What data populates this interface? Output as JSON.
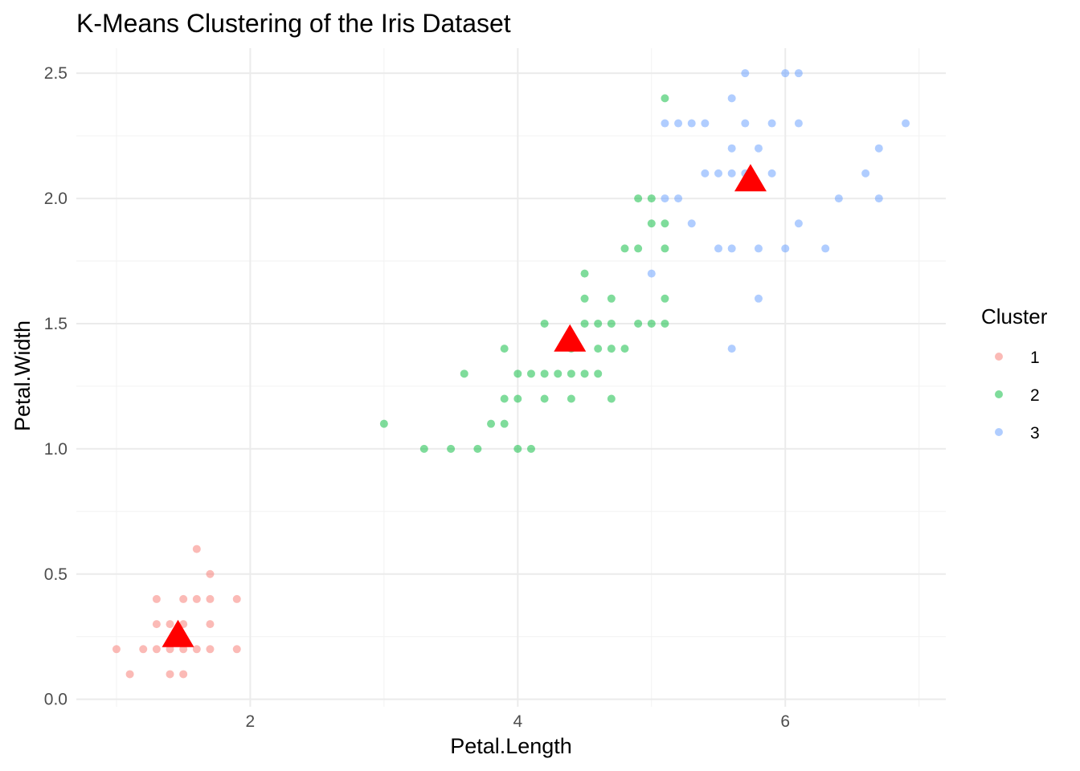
{
  "chart_data": {
    "type": "scatter",
    "title": "K-Means Clustering of the Iris Dataset",
    "xlabel": "Petal.Length",
    "ylabel": "Petal.Width",
    "xlim": [
      0.7,
      7.2
    ],
    "ylim": [
      -0.03,
      2.6
    ],
    "xticks": [
      2,
      4,
      6
    ],
    "yticks": [
      0.0,
      0.5,
      1.0,
      1.5,
      2.0,
      2.5
    ],
    "ytick_labels": [
      "0.0",
      "0.5",
      "1.0",
      "1.5",
      "2.0",
      "2.5"
    ],
    "grid": true,
    "legend": {
      "title": "Cluster",
      "position": "right"
    },
    "series": [
      {
        "name": "1",
        "color": "#F8766D",
        "points": [
          [
            1.0,
            0.2
          ],
          [
            1.1,
            0.1
          ],
          [
            1.2,
            0.2
          ],
          [
            1.3,
            0.2
          ],
          [
            1.3,
            0.3
          ],
          [
            1.3,
            0.4
          ],
          [
            1.4,
            0.1
          ],
          [
            1.4,
            0.2
          ],
          [
            1.4,
            0.3
          ],
          [
            1.5,
            0.1
          ],
          [
            1.5,
            0.2
          ],
          [
            1.5,
            0.3
          ],
          [
            1.5,
            0.4
          ],
          [
            1.6,
            0.2
          ],
          [
            1.6,
            0.4
          ],
          [
            1.6,
            0.6
          ],
          [
            1.7,
            0.2
          ],
          [
            1.7,
            0.3
          ],
          [
            1.7,
            0.4
          ],
          [
            1.7,
            0.5
          ],
          [
            1.9,
            0.2
          ],
          [
            1.9,
            0.4
          ]
        ]
      },
      {
        "name": "2",
        "color": "#00BA38",
        "points": [
          [
            3.0,
            1.1
          ],
          [
            3.3,
            1.0
          ],
          [
            3.5,
            1.0
          ],
          [
            3.6,
            1.3
          ],
          [
            3.7,
            1.0
          ],
          [
            3.8,
            1.1
          ],
          [
            3.9,
            1.1
          ],
          [
            3.9,
            1.2
          ],
          [
            3.9,
            1.4
          ],
          [
            4.0,
            1.0
          ],
          [
            4.0,
            1.2
          ],
          [
            4.0,
            1.3
          ],
          [
            4.1,
            1.0
          ],
          [
            4.1,
            1.3
          ],
          [
            4.2,
            1.2
          ],
          [
            4.2,
            1.3
          ],
          [
            4.2,
            1.5
          ],
          [
            4.3,
            1.3
          ],
          [
            4.4,
            1.2
          ],
          [
            4.4,
            1.3
          ],
          [
            4.4,
            1.4
          ],
          [
            4.5,
            1.3
          ],
          [
            4.5,
            1.5
          ],
          [
            4.5,
            1.6
          ],
          [
            4.5,
            1.7
          ],
          [
            4.6,
            1.3
          ],
          [
            4.6,
            1.4
          ],
          [
            4.6,
            1.5
          ],
          [
            4.7,
            1.2
          ],
          [
            4.7,
            1.4
          ],
          [
            4.7,
            1.5
          ],
          [
            4.7,
            1.6
          ],
          [
            4.8,
            1.4
          ],
          [
            4.8,
            1.8
          ],
          [
            4.9,
            1.5
          ],
          [
            4.9,
            1.8
          ],
          [
            4.9,
            2.0
          ],
          [
            5.0,
            1.5
          ],
          [
            5.0,
            1.9
          ],
          [
            5.0,
            2.0
          ],
          [
            5.1,
            1.5
          ],
          [
            5.1,
            1.6
          ],
          [
            5.1,
            1.8
          ],
          [
            5.1,
            1.9
          ],
          [
            5.1,
            2.4
          ]
        ]
      },
      {
        "name": "3",
        "color": "#619CFF",
        "points": [
          [
            5.0,
            1.7
          ],
          [
            5.1,
            2.0
          ],
          [
            5.1,
            2.3
          ],
          [
            5.2,
            2.0
          ],
          [
            5.2,
            2.3
          ],
          [
            5.3,
            1.9
          ],
          [
            5.3,
            2.3
          ],
          [
            5.4,
            2.1
          ],
          [
            5.4,
            2.3
          ],
          [
            5.5,
            1.8
          ],
          [
            5.5,
            2.1
          ],
          [
            5.6,
            1.4
          ],
          [
            5.6,
            1.8
          ],
          [
            5.6,
            2.1
          ],
          [
            5.6,
            2.2
          ],
          [
            5.6,
            2.4
          ],
          [
            5.7,
            2.1
          ],
          [
            5.7,
            2.3
          ],
          [
            5.7,
            2.5
          ],
          [
            5.8,
            1.6
          ],
          [
            5.8,
            1.8
          ],
          [
            5.8,
            2.2
          ],
          [
            5.9,
            2.1
          ],
          [
            5.9,
            2.3
          ],
          [
            6.0,
            1.8
          ],
          [
            6.0,
            2.5
          ],
          [
            6.1,
            1.9
          ],
          [
            6.1,
            2.3
          ],
          [
            6.1,
            2.5
          ],
          [
            6.3,
            1.8
          ],
          [
            6.4,
            2.0
          ],
          [
            6.6,
            2.1
          ],
          [
            6.7,
            2.0
          ],
          [
            6.7,
            2.2
          ],
          [
            6.9,
            2.3
          ]
        ]
      }
    ],
    "centroids": {
      "color": "#FF0000",
      "marker": "triangle",
      "points": [
        [
          1.46,
          0.25
        ],
        [
          4.39,
          1.43
        ],
        [
          5.74,
          2.07
        ]
      ]
    }
  }
}
